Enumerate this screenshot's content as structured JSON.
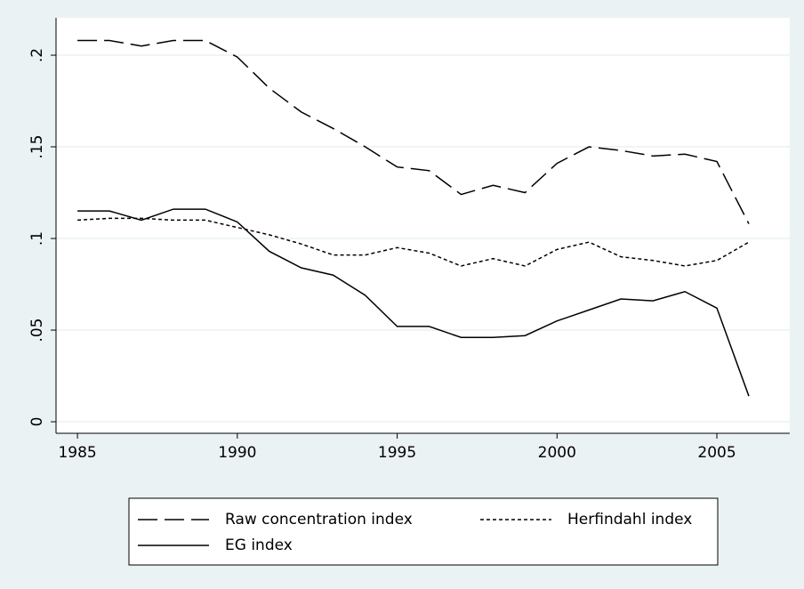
{
  "chart_data": {
    "type": "line",
    "x": [
      1985,
      1986,
      1987,
      1988,
      1989,
      1990,
      1991,
      1992,
      1993,
      1994,
      1995,
      1996,
      1997,
      1998,
      1999,
      2000,
      2001,
      2002,
      2003,
      2004,
      2005,
      2006
    ],
    "series": [
      {
        "name": "Raw concentration index",
        "color": "#000000",
        "dash": "dashed",
        "values": [
          0.208,
          0.208,
          0.205,
          0.208,
          0.208,
          0.199,
          0.182,
          0.169,
          0.16,
          0.15,
          0.139,
          0.137,
          0.124,
          0.129,
          0.125,
          0.141,
          0.15,
          0.148,
          0.145,
          0.146,
          0.142,
          0.108
        ]
      },
      {
        "name": "Herfindahl index",
        "color": "#000000",
        "dash": "dotted",
        "values": [
          0.11,
          0.111,
          0.111,
          0.11,
          0.11,
          0.106,
          0.102,
          0.097,
          0.091,
          0.091,
          0.095,
          0.092,
          0.085,
          0.089,
          0.085,
          0.094,
          0.098,
          0.09,
          0.088,
          0.085,
          0.088,
          0.098
        ]
      },
      {
        "name": "EG index",
        "color": "#000000",
        "dash": "solid",
        "values": [
          0.115,
          0.115,
          0.11,
          0.116,
          0.116,
          0.109,
          0.093,
          0.084,
          0.08,
          0.069,
          0.052,
          0.052,
          0.046,
          0.046,
          0.047,
          0.055,
          0.061,
          0.067,
          0.066,
          0.071,
          0.062,
          0.014
        ]
      }
    ],
    "xlim": [
      1984.33,
      2007.28
    ],
    "xticks": [
      1985,
      1990,
      1995,
      2000,
      2005
    ],
    "ylim": [
      -0.0063,
      0.2204
    ],
    "yticks": [
      0,
      {
        "value": 0.05,
        "label": ".05"
      },
      {
        "value": 0.1,
        "label": ".1"
      },
      {
        "value": 0.15,
        "label": ".15"
      },
      {
        "value": 0.2,
        "label": ".2"
      }
    ],
    "grid": true,
    "legend": "bottom"
  }
}
